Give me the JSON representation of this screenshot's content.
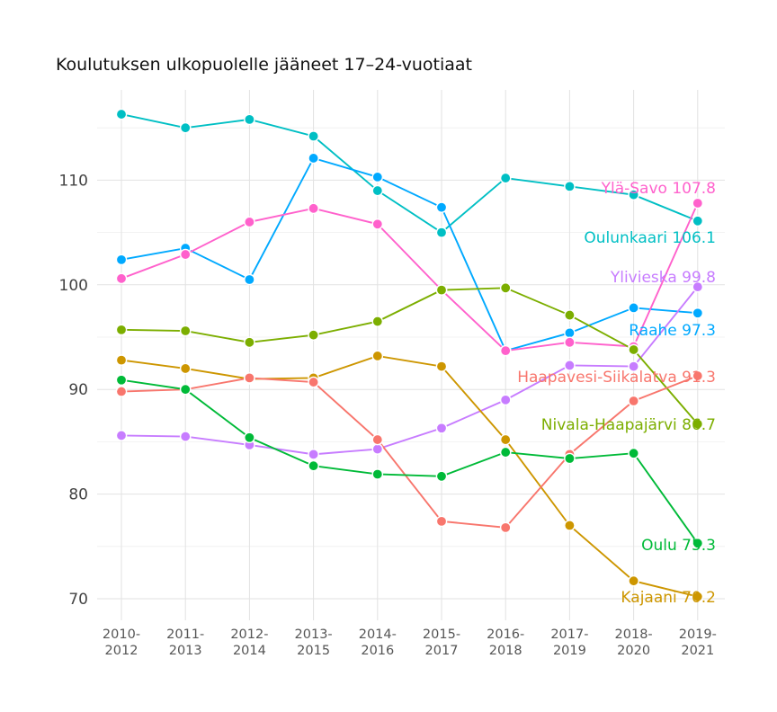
{
  "chart_data": {
    "type": "line",
    "title": "Koulutuksen ulkopuolelle jääneet 17–24-vuotiaat",
    "xlabel": "",
    "ylabel": "",
    "categories": [
      "2010-2012",
      "2011-2013",
      "2012-2014",
      "2013-2015",
      "2014-2016",
      "2015-2017",
      "2016-2018",
      "2017-2019",
      "2018-2020",
      "2019-2021"
    ],
    "category_lines": [
      [
        "2010-",
        "2012"
      ],
      [
        "2011-",
        "2013"
      ],
      [
        "2012-",
        "2014"
      ],
      [
        "2013-",
        "2015"
      ],
      [
        "2014-",
        "2016"
      ],
      [
        "2015-",
        "2017"
      ],
      [
        "2016-",
        "2018"
      ],
      [
        "2017-",
        "2019"
      ],
      [
        "2018-",
        "2020"
      ],
      [
        "2019-",
        "2021"
      ]
    ],
    "ylim": [
      67.5,
      118
    ],
    "yticks": [
      70,
      80,
      90,
      100,
      110
    ],
    "ytick_labels": [
      "70",
      "80",
      "90",
      "100",
      "110"
    ],
    "grid": true,
    "legend": "none (direct labels at line ends)",
    "series": [
      {
        "name": "Oulunkaari",
        "color": "#00BFC4",
        "end_label": "Oulunkaari 106.1",
        "values": [
          116.3,
          115.0,
          115.8,
          114.2,
          109.0,
          105.0,
          110.2,
          109.4,
          108.6,
          106.1
        ]
      },
      {
        "name": "Raahe",
        "color": "#00A9FF",
        "end_label": "Raahe 97.3",
        "values": [
          102.4,
          103.5,
          100.5,
          112.1,
          110.3,
          107.4,
          93.7,
          95.4,
          97.8,
          97.3
        ]
      },
      {
        "name": "Ylä-Savo",
        "color": "#FF61CC",
        "end_label": "Ylä-Savo 107.8",
        "values": [
          100.6,
          102.9,
          106.0,
          107.3,
          105.8,
          99.5,
          93.7,
          94.5,
          94.1,
          107.8
        ]
      },
      {
        "name": "Ylivieska",
        "color": "#C77CFF",
        "end_label": "Ylivieska 99.8",
        "values": [
          85.6,
          85.5,
          84.7,
          83.8,
          84.3,
          86.3,
          89.0,
          92.3,
          92.2,
          99.8
        ]
      },
      {
        "name": "Nivala-Haapajärvi",
        "color": "#7CAE00",
        "end_label": "Nivala-Haapajärvi 86.7",
        "values": [
          95.7,
          95.6,
          94.5,
          95.2,
          96.5,
          99.5,
          99.7,
          97.1,
          93.8,
          86.7
        ]
      },
      {
        "name": "Kajaani",
        "color": "#CD9600",
        "end_label": "Kajaani 70.2",
        "values": [
          92.8,
          92.0,
          91.0,
          91.1,
          93.2,
          92.2,
          85.2,
          77.0,
          71.7,
          70.2
        ]
      },
      {
        "name": "Haapavesi-Siikalatva",
        "color": "#F8766D",
        "end_label": "Haapavesi-Siikalatva 91.3",
        "values": [
          89.8,
          90.0,
          91.1,
          90.7,
          85.2,
          77.4,
          76.8,
          83.8,
          88.9,
          91.3
        ]
      },
      {
        "name": "Oulu",
        "color": "#00BA38",
        "end_label": "Oulu 75.3",
        "values": [
          90.9,
          90.0,
          85.4,
          82.7,
          81.9,
          81.7,
          84.0,
          83.4,
          83.9,
          75.3
        ]
      }
    ]
  }
}
